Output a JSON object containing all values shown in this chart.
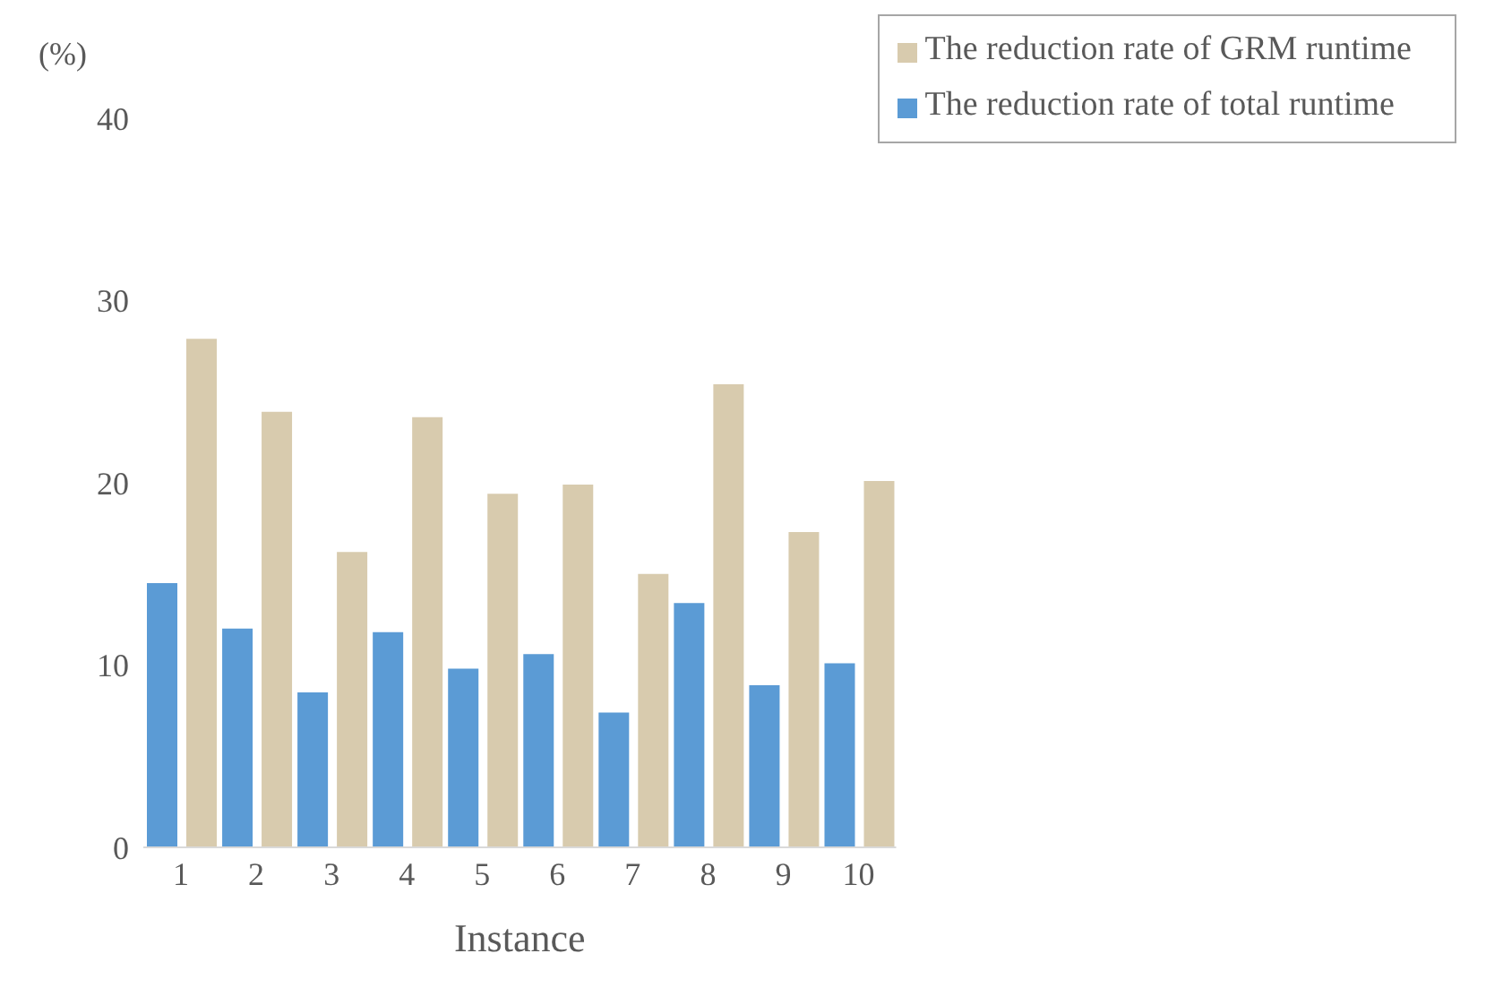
{
  "chart_data": {
    "type": "bar",
    "xlabel": "Instance",
    "ylabel": "(%)",
    "categories": [
      "1",
      "2",
      "3",
      "4",
      "5",
      "6",
      "7",
      "8",
      "9",
      "10"
    ],
    "series": [
      {
        "name": "The reduction rate of total runtime",
        "color": "#5b9bd5",
        "values": [
          14.5,
          12.0,
          8.5,
          11.8,
          9.8,
          10.6,
          7.4,
          13.4,
          8.9,
          10.1
        ]
      },
      {
        "name": "The reduction rate of GRM runtime",
        "color": "#d8cbae",
        "values": [
          27.9,
          23.9,
          16.2,
          23.6,
          19.4,
          19.9,
          15.0,
          25.4,
          17.3,
          20.1
        ]
      }
    ],
    "ylim": [
      0,
      40
    ],
    "yticks": [
      0,
      10,
      20,
      30,
      40
    ],
    "grid": false,
    "legend": "top right"
  }
}
